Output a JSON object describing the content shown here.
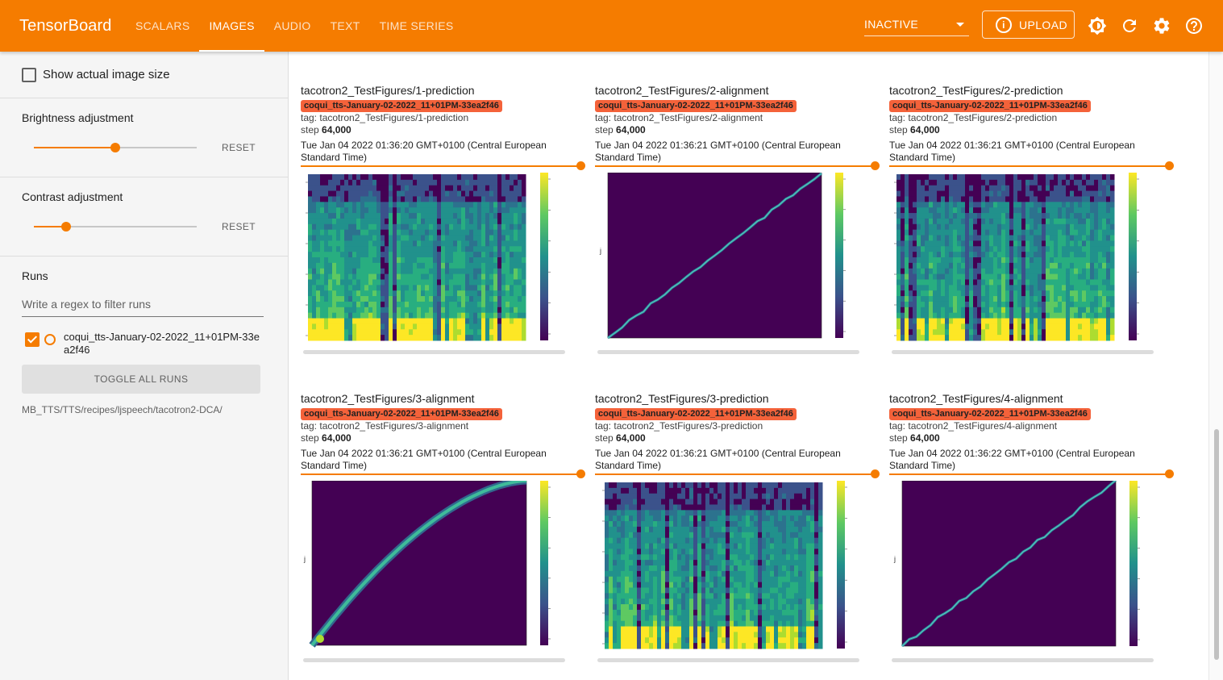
{
  "app": {
    "title": "TensorBoard"
  },
  "nav": {
    "tabs": [
      {
        "label": "SCALARS"
      },
      {
        "label": "IMAGES"
      },
      {
        "label": "AUDIO"
      },
      {
        "label": "TEXT"
      },
      {
        "label": "TIME SERIES"
      }
    ],
    "active_tab": "IMAGES"
  },
  "toolbar": {
    "plugin_select": "INACTIVE",
    "upload_label": "UPLOAD"
  },
  "icons": [
    "brightness-icon",
    "refresh-icon",
    "settings-icon",
    "help-icon",
    "info-icon"
  ],
  "colors": {
    "accent": "#f57c00",
    "run_chip": "#f4623a",
    "viridis_low": "#440154",
    "viridis_high": "#fde725"
  },
  "sidebar": {
    "show_actual_size_label": "Show actual image size",
    "show_actual_size_checked": false,
    "brightness": {
      "label": "Brightness adjustment",
      "reset": "RESET",
      "level": 0.5
    },
    "contrast": {
      "label": "Contrast adjustment",
      "reset": "RESET",
      "level": 0.2
    },
    "runs": {
      "title": "Runs",
      "filter_placeholder": "Write a regex to filter runs",
      "items": [
        {
          "name": "coqui_tts-January-02-2022_11+01PM-33ea2f46",
          "checked": true
        }
      ],
      "toggle_all": "TOGGLE ALL RUNS",
      "path": "MB_TTS/TTS/recipes/ljspeech/tacotron2-DCA/"
    }
  },
  "cards": [
    {
      "title": "tacotron2_TestFigures/1-prediction",
      "run": "coqui_tts-January-02-2022_11+01PM-33ea2f46",
      "tag_label": "tag:",
      "tag": "tacotron2_TestFigures/1-prediction",
      "step_label": "step",
      "step": "64,000",
      "time": "Tue Jan 04 2022 01:36:20 GMT+0100 (Central European Standard Time)",
      "kind": "prediction"
    },
    {
      "title": "tacotron2_TestFigures/2-alignment",
      "run": "coqui_tts-January-02-2022_11+01PM-33ea2f46",
      "tag_label": "tag:",
      "tag": "tacotron2_TestFigures/2-alignment",
      "step_label": "step",
      "step": "64,000",
      "time": "Tue Jan 04 2022 01:36:21 GMT+0100 (Central European Standard Time)",
      "kind": "alignment"
    },
    {
      "title": "tacotron2_TestFigures/2-prediction",
      "run": "coqui_tts-January-02-2022_11+01PM-33ea2f46",
      "tag_label": "tag:",
      "tag": "tacotron2_TestFigures/2-prediction",
      "step_label": "step",
      "step": "64,000",
      "time": "Tue Jan 04 2022 01:36:21 GMT+0100 (Central European Standard Time)",
      "kind": "prediction"
    },
    {
      "title": "tacotron2_TestFigures/3-alignment",
      "run": "coqui_tts-January-02-2022_11+01PM-33ea2f46",
      "tag_label": "tag:",
      "tag": "tacotron2_TestFigures/3-alignment",
      "step_label": "step",
      "step": "64,000",
      "time": "Tue Jan 04 2022 01:36:21 GMT+0100 (Central European Standard Time)",
      "kind": "alignment-curve"
    },
    {
      "title": "tacotron2_TestFigures/3-prediction",
      "run": "coqui_tts-January-02-2022_11+01PM-33ea2f46",
      "tag_label": "tag:",
      "tag": "tacotron2_TestFigures/3-prediction",
      "step_label": "step",
      "step": "64,000",
      "time": "Tue Jan 04 2022 01:36:21 GMT+0100 (Central European Standard Time)",
      "kind": "prediction"
    },
    {
      "title": "tacotron2_TestFigures/4-alignment",
      "run": "coqui_tts-January-02-2022_11+01PM-33ea2f46",
      "tag_label": "tag:",
      "tag": "tacotron2_TestFigures/4-alignment",
      "step_label": "step",
      "step": "64,000",
      "time": "Tue Jan 04 2022 01:36:22 GMT+0100 (Central European Standard Time)",
      "kind": "alignment"
    }
  ]
}
